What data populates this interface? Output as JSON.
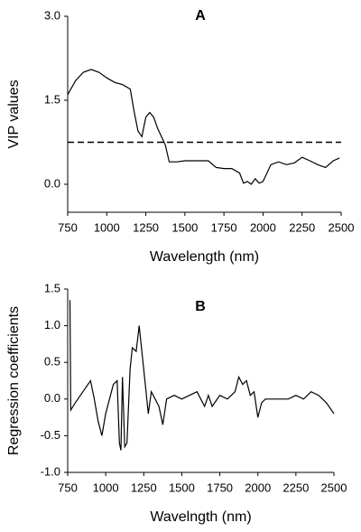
{
  "chart_data": [
    {
      "type": "line",
      "title": "A",
      "xlabel": "Wavelength (nm)",
      "ylabel": "VIP values",
      "xlim": [
        750,
        2500
      ],
      "xticks": [
        750,
        1000,
        1250,
        1500,
        1750,
        2000,
        2250,
        2500
      ],
      "ylim": [
        -0.5,
        3.0
      ],
      "yticks": [
        {
          "value": 0,
          "label": "0.0"
        },
        {
          "value": 1.5,
          "label": "1.5"
        },
        {
          "value": 3.0,
          "label": "3.0"
        }
      ],
      "threshold": 0.75,
      "x": [
        750,
        800,
        850,
        900,
        950,
        1000,
        1050,
        1100,
        1150,
        1175,
        1200,
        1225,
        1250,
        1275,
        1300,
        1325,
        1350,
        1375,
        1400,
        1450,
        1500,
        1550,
        1600,
        1650,
        1700,
        1750,
        1800,
        1850,
        1875,
        1900,
        1925,
        1950,
        1975,
        2000,
        2025,
        2050,
        2100,
        2150,
        2200,
        2250,
        2300,
        2350,
        2400,
        2450,
        2490
      ],
      "series": [
        {
          "color": "#000000",
          "values": [
            1.6,
            1.85,
            2.0,
            2.05,
            2.0,
            1.9,
            1.82,
            1.78,
            1.7,
            1.3,
            0.95,
            0.85,
            1.2,
            1.28,
            1.2,
            1.0,
            0.85,
            0.7,
            0.4,
            0.4,
            0.42,
            0.42,
            0.42,
            0.42,
            0.3,
            0.28,
            0.28,
            0.2,
            0.02,
            0.05,
            0.0,
            0.1,
            0.02,
            0.05,
            0.2,
            0.35,
            0.4,
            0.35,
            0.38,
            0.48,
            0.42,
            0.35,
            0.3,
            0.42,
            0.47
          ]
        }
      ]
    },
    {
      "type": "line",
      "title": "B",
      "xlabel": "Wavelngth (nm)",
      "ylabel": "Regression coefficients",
      "xlim": [
        750,
        2500
      ],
      "xticks": [
        750,
        1000,
        1250,
        1500,
        1750,
        2000,
        2250,
        2500
      ],
      "ylim": [
        -1.0,
        1.5
      ],
      "yticks": [
        {
          "value": -1.0,
          "label": "-1.0"
        },
        {
          "value": -0.5,
          "label": "-0.5"
        },
        {
          "value": 0,
          "label": "0.0"
        },
        {
          "value": 0.5,
          "label": "0.5"
        },
        {
          "value": 1.0,
          "label": "1.0"
        },
        {
          "value": 1.5,
          "label": "1.5"
        }
      ],
      "x": [
        765,
        770,
        800,
        850,
        900,
        925,
        950,
        975,
        1000,
        1050,
        1075,
        1090,
        1100,
        1110,
        1125,
        1140,
        1160,
        1175,
        1200,
        1220,
        1240,
        1260,
        1280,
        1300,
        1325,
        1350,
        1375,
        1400,
        1450,
        1500,
        1550,
        1600,
        1625,
        1650,
        1675,
        1700,
        1750,
        1800,
        1850,
        1875,
        1900,
        1925,
        1950,
        1975,
        2000,
        2025,
        2050,
        2100,
        2150,
        2200,
        2250,
        2300,
        2350,
        2400,
        2450,
        2500
      ],
      "series": [
        {
          "color": "#000000",
          "values": [
            1.35,
            -0.15,
            -0.05,
            0.1,
            0.25,
            0.0,
            -0.3,
            -0.5,
            -0.2,
            0.2,
            0.25,
            -0.6,
            -0.7,
            0.3,
            -0.65,
            -0.6,
            0.4,
            0.7,
            0.65,
            1.0,
            0.6,
            0.2,
            -0.2,
            0.1,
            0.0,
            -0.1,
            -0.35,
            0.0,
            0.05,
            0.0,
            0.05,
            0.1,
            0.0,
            -0.1,
            0.05,
            -0.1,
            0.05,
            0.0,
            0.1,
            0.3,
            0.2,
            0.25,
            0.05,
            0.1,
            -0.25,
            -0.05,
            0.0,
            0.0,
            0.0,
            0.0,
            0.05,
            0.0,
            0.1,
            0.05,
            -0.05,
            -0.2
          ]
        }
      ]
    }
  ]
}
